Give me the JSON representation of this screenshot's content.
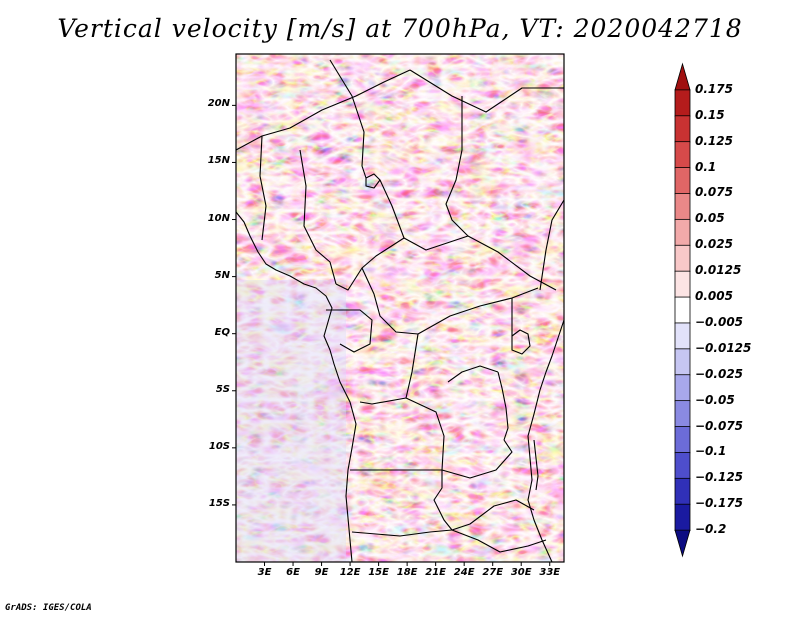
{
  "title": "Vertical velocity [m/s] at 700hPa, VT: 2020042718",
  "footer": "GrADS: IGES/COLA",
  "map": {
    "lon_range": [
      0,
      34.5
    ],
    "lat_range": [
      -20,
      24.5
    ],
    "lat_ticks": [
      {
        "value": 20,
        "label": "20N"
      },
      {
        "value": 15,
        "label": "15N"
      },
      {
        "value": 10,
        "label": "10N"
      },
      {
        "value": 5,
        "label": "5N"
      },
      {
        "value": 0,
        "label": "EQ"
      },
      {
        "value": -5,
        "label": "5S"
      },
      {
        "value": -10,
        "label": "10S"
      },
      {
        "value": -15,
        "label": "15S"
      }
    ],
    "lon_ticks": [
      {
        "value": 3,
        "label": "3E"
      },
      {
        "value": 6,
        "label": "6E"
      },
      {
        "value": 9,
        "label": "9E"
      },
      {
        "value": 12,
        "label": "12E"
      },
      {
        "value": 15,
        "label": "15E"
      },
      {
        "value": 18,
        "label": "18E"
      },
      {
        "value": 21,
        "label": "21E"
      },
      {
        "value": 24,
        "label": "24E"
      },
      {
        "value": 27,
        "label": "27E"
      },
      {
        "value": 30,
        "label": "30E"
      },
      {
        "value": 33,
        "label": "33E"
      }
    ]
  },
  "colorbar": {
    "labels": [
      "0.175",
      "0.15",
      "0.125",
      "0.1",
      "0.075",
      "0.05",
      "0.025",
      "0.0125",
      "0.005",
      "−0.005",
      "−0.0125",
      "−0.025",
      "−0.05",
      "−0.075",
      "−0.1",
      "−0.125",
      "−0.175",
      "−0.2"
    ],
    "colors": [
      "#a01010",
      "#b41c1c",
      "#c83232",
      "#d64a4a",
      "#e06666",
      "#ea8888",
      "#f2aaaa",
      "#f8c8c8",
      "#fce4e4",
      "#ffffff",
      "#e2e2fa",
      "#c6c6f2",
      "#a8a8ec",
      "#8a8ae2",
      "#6c6cd8",
      "#4e4ecc",
      "#3030b8",
      "#1a1aa0",
      "#0c0c82"
    ]
  }
}
